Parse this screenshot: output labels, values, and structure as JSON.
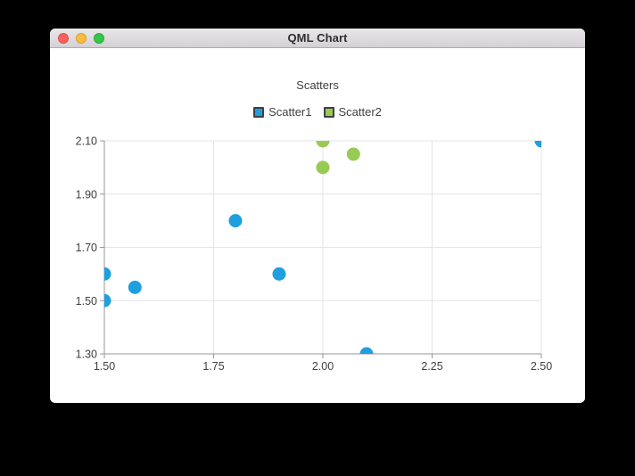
{
  "background_color": "#000000",
  "window": {
    "title": "QML Chart",
    "controls": {
      "close_color": "#fc615d",
      "minimize_color": "#fdbc40",
      "zoom_color": "#34c749"
    }
  },
  "chart_data": {
    "type": "scatter",
    "title": "Scatters",
    "legend_position": "top",
    "grid": true,
    "text_color": "#404044",
    "grid_color": "#e4e4e4",
    "axis_line_color": "#979797",
    "axes": {
      "x": {
        "min": 1.5,
        "max": 2.5,
        "tick_values": [
          1.5,
          1.75,
          2.0,
          2.25,
          2.5
        ],
        "ticks": [
          "1.50",
          "1.75",
          "2.00",
          "2.25",
          "2.50"
        ]
      },
      "y": {
        "min": 1.3,
        "max": 2.1,
        "tick_values": [
          1.3,
          1.5,
          1.7,
          1.9,
          2.1
        ],
        "ticks": [
          "1.30",
          "1.50",
          "1.70",
          "1.90",
          "2.10"
        ]
      }
    },
    "series": [
      {
        "name": "Scatter1",
        "color": "#209fdf",
        "marker_size": 15,
        "points": [
          [
            1.5,
            1.5
          ],
          [
            1.5,
            1.6
          ],
          [
            1.57,
            1.55
          ],
          [
            1.8,
            1.8
          ],
          [
            1.9,
            1.6
          ],
          [
            2.1,
            1.3
          ],
          [
            2.5,
            2.1
          ]
        ]
      },
      {
        "name": "Scatter2",
        "color": "#99ca53",
        "marker_size": 15,
        "points": [
          [
            2.0,
            2.0
          ],
          [
            2.0,
            2.1
          ],
          [
            2.07,
            2.05
          ]
        ]
      }
    ]
  }
}
